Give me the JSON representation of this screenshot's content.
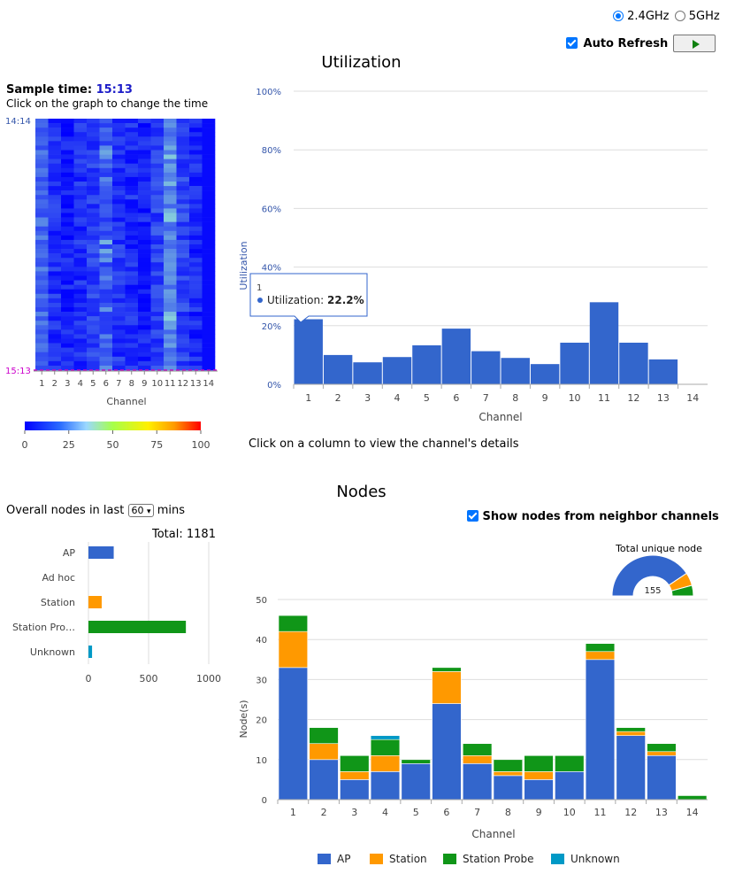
{
  "band": {
    "opt1": "2.4GHz",
    "opt2": "5GHz",
    "selected": "2.4GHz"
  },
  "auto_refresh": {
    "label": "Auto Refresh",
    "checked": true
  },
  "play_icon": "play-icon",
  "utilization": {
    "title": "Utilization",
    "sample_label": "Sample time:",
    "sample_time": "15:13",
    "hint": "Click on the graph to change the time",
    "time_start": "14:14",
    "time_end": "15:13",
    "heatmap_xlabel": "Channel",
    "colorbar_ticks": [
      "0",
      "25",
      "50",
      "75",
      "100"
    ],
    "footer_hint": "Click on a column to view the channel's details",
    "tooltip": {
      "channel": "1",
      "label": "Utilization:",
      "value": "22.2%"
    }
  },
  "nodes": {
    "title": "Nodes",
    "overall_prefix": "Overall nodes in last",
    "overall_minutes": "60",
    "overall_suffix": "mins",
    "show_neighbor": "Show nodes from neighbor channels",
    "total_label": "Total:",
    "total_value": "1181",
    "unique_label": "Total unique node",
    "unique_value": "155"
  },
  "colors": {
    "ap": "#3366cc",
    "station": "#ff9900",
    "probe": "#109618",
    "unknown": "#0099c6",
    "heat_base": "#0000ff",
    "magenta": "#cc00cc",
    "axis_blue": "#3355aa"
  },
  "chart_data": [
    {
      "type": "bar",
      "title": "Utilization",
      "xlabel": "Channel",
      "ylabel": "Utilization",
      "categories": [
        "1",
        "2",
        "3",
        "4",
        "5",
        "6",
        "7",
        "8",
        "9",
        "10",
        "11",
        "12",
        "13",
        "14"
      ],
      "values": [
        22.2,
        10,
        7.5,
        9.3,
        13.3,
        19,
        11.3,
        9,
        6.9,
        14.2,
        28,
        14.2,
        8.5,
        0
      ],
      "ylim": [
        0,
        100
      ],
      "yticks": [
        "0%",
        "20%",
        "40%",
        "60%",
        "80%",
        "100%"
      ],
      "grid": true
    },
    {
      "type": "bar",
      "orientation": "horizontal",
      "categories": [
        "AP",
        "Ad hoc",
        "Station",
        "Station Pro…",
        "Unknown"
      ],
      "values": [
        210,
        0,
        110,
        810,
        30
      ],
      "xlim": [
        0,
        1000
      ],
      "xticks": [
        "0",
        "500",
        "1000"
      ]
    },
    {
      "type": "bar",
      "stacked": true,
      "xlabel": "Channel",
      "ylabel": "Node(s)",
      "categories": [
        "1",
        "2",
        "3",
        "4",
        "5",
        "6",
        "7",
        "8",
        "9",
        "10",
        "11",
        "12",
        "13",
        "14"
      ],
      "ylim": [
        0,
        50
      ],
      "yticks": [
        "0",
        "10",
        "20",
        "30",
        "40",
        "50"
      ],
      "series": [
        {
          "name": "AP",
          "values": [
            33,
            10,
            5,
            7,
            9,
            24,
            9,
            6,
            5,
            7,
            35,
            16,
            11,
            0
          ]
        },
        {
          "name": "Station",
          "values": [
            9,
            4,
            2,
            4,
            0,
            8,
            2,
            1,
            2,
            0,
            2,
            1,
            1,
            0
          ]
        },
        {
          "name": "Station Probe",
          "values": [
            4,
            4,
            4,
            4,
            1,
            1,
            3,
            3,
            4,
            4,
            2,
            1,
            2,
            1
          ]
        },
        {
          "name": "Unknown",
          "values": [
            0,
            0,
            0,
            1,
            0,
            0,
            0,
            0,
            0,
            0,
            0,
            0,
            0,
            0
          ]
        }
      ],
      "legend": "bottom"
    },
    {
      "type": "pie",
      "subtype": "half-donut",
      "title": "Total unique node",
      "center_label": "155",
      "categories": [
        "AP",
        "Station",
        "Station Probe",
        "Unknown"
      ],
      "values": [
        126,
        16,
        13,
        0
      ]
    }
  ]
}
